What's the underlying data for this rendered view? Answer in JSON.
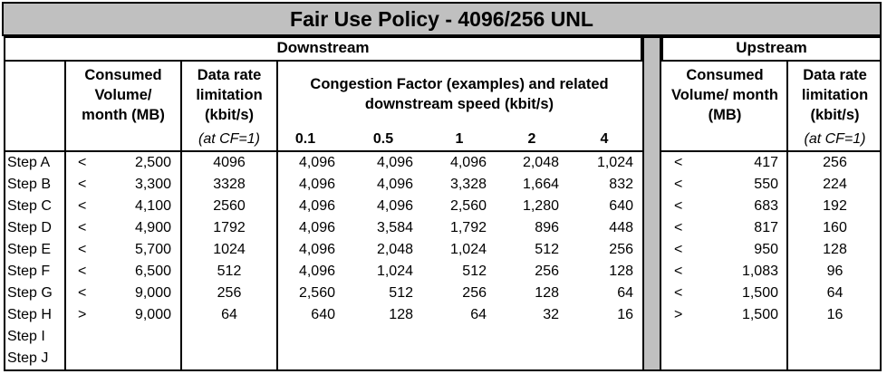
{
  "title": "Fair Use Policy - 4096/256 UNL",
  "downstream": {
    "section_label": "Downstream",
    "col_volume": "Consumed\nVolume/\nmonth (MB)",
    "col_rate": "Data rate\nlimitation\n(kbit/s)",
    "col_rate_note": "(at CF=1)",
    "col_congestion": "Congestion Factor (examples) and related\ndownstream speed (kbit/s)",
    "cf_values": [
      "0.1",
      "0.5",
      "1",
      "2",
      "4"
    ]
  },
  "upstream": {
    "section_label": "Upstream",
    "col_volume": "Consumed\nVolume/ month\n(MB)",
    "col_rate": "Data rate\nlimitation\n(kbit/s)",
    "col_rate_note": "(at CF=1)"
  },
  "rows": [
    {
      "step": "Step A",
      "d_op": "<",
      "d_vol": "2,500",
      "d_rate": "4096",
      "cf": [
        "4,096",
        "4,096",
        "4,096",
        "2,048",
        "1,024"
      ],
      "u_op": "<",
      "u_vol": "417",
      "u_rate": "256"
    },
    {
      "step": "Step B",
      "d_op": "<",
      "d_vol": "3,300",
      "d_rate": "3328",
      "cf": [
        "4,096",
        "4,096",
        "3,328",
        "1,664",
        "832"
      ],
      "u_op": "<",
      "u_vol": "550",
      "u_rate": "224"
    },
    {
      "step": "Step C",
      "d_op": "<",
      "d_vol": "4,100",
      "d_rate": "2560",
      "cf": [
        "4,096",
        "4,096",
        "2,560",
        "1,280",
        "640"
      ],
      "u_op": "<",
      "u_vol": "683",
      "u_rate": "192"
    },
    {
      "step": "Step D",
      "d_op": "<",
      "d_vol": "4,900",
      "d_rate": "1792",
      "cf": [
        "4,096",
        "3,584",
        "1,792",
        "896",
        "448"
      ],
      "u_op": "<",
      "u_vol": "817",
      "u_rate": "160"
    },
    {
      "step": "Step E",
      "d_op": "<",
      "d_vol": "5,700",
      "d_rate": "1024",
      "cf": [
        "4,096",
        "2,048",
        "1,024",
        "512",
        "256"
      ],
      "u_op": "<",
      "u_vol": "950",
      "u_rate": "128"
    },
    {
      "step": "Step F",
      "d_op": "<",
      "d_vol": "6,500",
      "d_rate": "512",
      "cf": [
        "4,096",
        "1,024",
        "512",
        "256",
        "128"
      ],
      "u_op": "<",
      "u_vol": "1,083",
      "u_rate": "96"
    },
    {
      "step": "Step G",
      "d_op": "<",
      "d_vol": "9,000",
      "d_rate": "256",
      "cf": [
        "2,560",
        "512",
        "256",
        "128",
        "64"
      ],
      "u_op": "<",
      "u_vol": "1,500",
      "u_rate": "64"
    },
    {
      "step": "Step H",
      "d_op": ">",
      "d_vol": "9,000",
      "d_rate": "64",
      "cf": [
        "640",
        "128",
        "64",
        "32",
        "16"
      ],
      "u_op": ">",
      "u_vol": "1,500",
      "u_rate": "16"
    },
    {
      "step": "Step I",
      "d_op": "",
      "d_vol": "",
      "d_rate": "",
      "cf": [
        "",
        "",
        "",
        "",
        ""
      ],
      "u_op": "",
      "u_vol": "",
      "u_rate": ""
    },
    {
      "step": "Step J",
      "d_op": "",
      "d_vol": "",
      "d_rate": "",
      "cf": [
        "",
        "",
        "",
        "",
        ""
      ],
      "u_op": "",
      "u_vol": "",
      "u_rate": ""
    }
  ]
}
